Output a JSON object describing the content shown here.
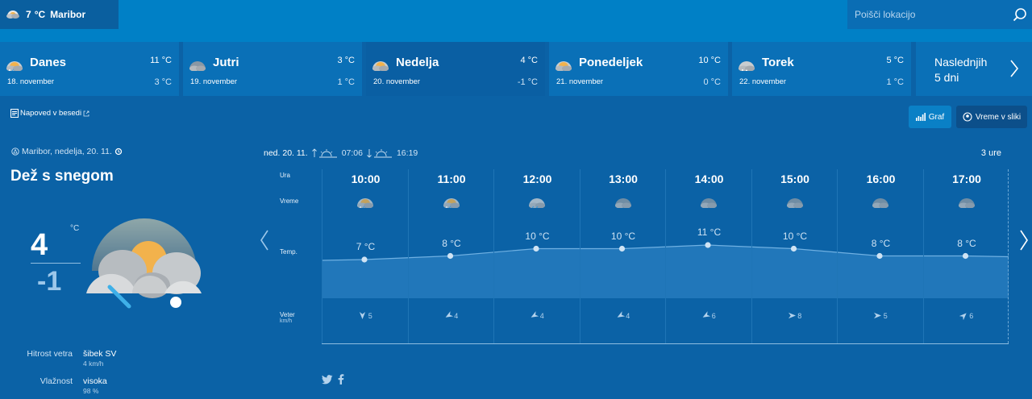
{
  "top": {
    "current_temp": "7",
    "current_unit": "°C",
    "current_city": "Maribor",
    "search_placeholder": "Poišči lokacijo"
  },
  "days": [
    {
      "name": "Danes",
      "date": "18. november",
      "max": "11 °C",
      "min": "3 °C",
      "icon": "rain-snow-cloud-icon"
    },
    {
      "name": "Jutri",
      "date": "19. november",
      "max": "3 °C",
      "min": "1 °C",
      "icon": "cloud-icon"
    },
    {
      "name": "Nedelja",
      "date": "20. november",
      "max": "4 °C",
      "min": "-1 °C",
      "icon": "sun-cloud-icon"
    },
    {
      "name": "Ponedeljek",
      "date": "21. november",
      "max": "10 °C",
      "min": "0 °C",
      "icon": "sun-cloud-icon"
    },
    {
      "name": "Torek",
      "date": "22. november",
      "max": "5 °C",
      "min": "1 °C",
      "icon": "snow-cloud-icon"
    }
  ],
  "next5": {
    "line1": "Naslednjih",
    "line2": "5 dni"
  },
  "toolbar": {
    "narrative": "Napoved v besedi",
    "graf": "Graf",
    "slike": "Vreme v sliki"
  },
  "current": {
    "location_line": "Maribor, nedelja, 20. 11.",
    "condition": "Dež s snegom",
    "unit": "°C",
    "max": "4",
    "min": "-1",
    "details": [
      {
        "label": "Hitrost vetra",
        "value": "šibek SV",
        "sub": "4 km/h"
      },
      {
        "label": "Vlažnost",
        "value": "visoka",
        "sub": "98 %"
      }
    ]
  },
  "hourly": {
    "date": "ned. 20. 11.",
    "sunrise": "07:06",
    "sunset": "16:19",
    "step": "3 ure",
    "labels": {
      "time": "Ura",
      "weather": "Vreme",
      "temp": "Temp.",
      "wind": "Veter",
      "wind_unit": "km/h"
    },
    "hours": [
      {
        "time": "10:00",
        "temp": "7 °C",
        "t": 7,
        "wind": "5",
        "dir": 180,
        "icon": "rain-snow-cloud-icon"
      },
      {
        "time": "11:00",
        "temp": "8 °C",
        "t": 8,
        "wind": "4",
        "dir": 240,
        "icon": "rain-snow-cloud-icon"
      },
      {
        "time": "12:00",
        "temp": "10 °C",
        "t": 10,
        "wind": "4",
        "dir": 240,
        "icon": "rain-cloud-icon"
      },
      {
        "time": "13:00",
        "temp": "10 °C",
        "t": 10,
        "wind": "4",
        "dir": 240,
        "icon": "cloud-icon"
      },
      {
        "time": "14:00",
        "temp": "11 °C",
        "t": 11,
        "wind": "6",
        "dir": 240,
        "icon": "cloud-icon"
      },
      {
        "time": "15:00",
        "temp": "10 °C",
        "t": 10,
        "wind": "8",
        "dir": 90,
        "icon": "cloud-icon"
      },
      {
        "time": "16:00",
        "temp": "8 °C",
        "t": 8,
        "wind": "5",
        "dir": 90,
        "icon": "cloud-icon"
      },
      {
        "time": "17:00",
        "temp": "8 °C",
        "t": 8,
        "wind": "6",
        "dir": 45,
        "icon": "cloud-icon"
      }
    ]
  },
  "colors": {
    "bg": "#0b62a6",
    "topbar": "#0080c6",
    "tab": "#0a70b7",
    "tab_active": "#0a5fa3",
    "sun": "#f2b24c"
  }
}
